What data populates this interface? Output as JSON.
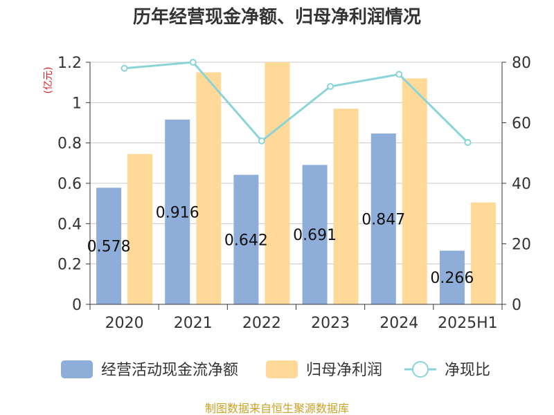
{
  "chart_data": {
    "type": "bar",
    "title": "历年经营现金净额、归母净利润情况",
    "y_left_unit": "(亿元)",
    "categories": [
      "2020",
      "2021",
      "2022",
      "2023",
      "2024",
      "2025H1"
    ],
    "y_left_ticks": [
      "0",
      "0.2",
      "0.4",
      "0.6",
      "0.8",
      "1",
      "1.2"
    ],
    "y_right_ticks": [
      "0",
      "20",
      "40",
      "60",
      "80"
    ],
    "y_left_range": [
      0,
      1.2
    ],
    "y_right_range": [
      0,
      80
    ],
    "grid": true,
    "legend_position": "bottom",
    "series": [
      {
        "name": "经营活动现金流净额",
        "kind": "bar",
        "axis": "left",
        "color": "#8eadd9",
        "values": [
          0.578,
          0.916,
          0.642,
          0.691,
          0.847,
          0.266
        ],
        "labels": [
          "0.578",
          "0.916",
          "0.642",
          "0.691",
          "0.847",
          "0.266"
        ]
      },
      {
        "name": "归母净利润",
        "kind": "bar",
        "axis": "left",
        "color": "#fed998",
        "values": [
          0.745,
          1.15,
          1.2,
          0.97,
          1.12,
          0.505
        ]
      },
      {
        "name": "净现比",
        "kind": "line",
        "axis": "right",
        "color": "#8ad4d8",
        "values": [
          78,
          80,
          54,
          72,
          76,
          53.5
        ]
      }
    ],
    "source": "制图数据来自恒生聚源数据库"
  }
}
